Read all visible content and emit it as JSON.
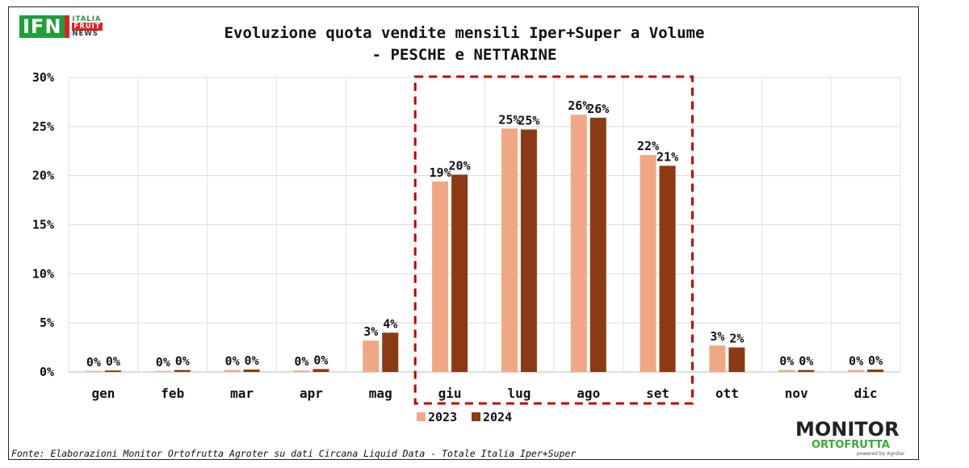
{
  "header": {
    "logo_ifn": {
      "mark": "IFN",
      "line1": "ITALIA",
      "line2": "FRUIT",
      "line3": "NEWS"
    }
  },
  "chart_data": {
    "type": "bar",
    "title": "Evoluzione quota vendite mensili Iper+Super a Volume",
    "subtitle": "- PESCHE e NETTARINE",
    "categories": [
      "gen",
      "feb",
      "mar",
      "apr",
      "mag",
      "giu",
      "lug",
      "ago",
      "set",
      "ott",
      "nov",
      "dic"
    ],
    "series": [
      {
        "name": "2023",
        "color": "#f0a884",
        "values": [
          0.1,
          0.1,
          0.2,
          0.15,
          3.2,
          19.4,
          24.8,
          26.2,
          22.1,
          2.7,
          0.2,
          0.2
        ],
        "labels": [
          "0%",
          "0%",
          "0%",
          "0%",
          "3%",
          "19%",
          "25%",
          "26%",
          "22%",
          "3%",
          "0%",
          "0%"
        ]
      },
      {
        "name": "2024",
        "color": "#8b3a14",
        "values": [
          0.15,
          0.2,
          0.25,
          0.3,
          4.0,
          20.1,
          24.7,
          25.9,
          21.0,
          2.5,
          0.2,
          0.25
        ],
        "labels": [
          "0%",
          "0%",
          "0%",
          "0%",
          "4%",
          "20%",
          "25%",
          "26%",
          "21%",
          "2%",
          "0%",
          "0%"
        ]
      }
    ],
    "ylim": [
      0,
      30
    ],
    "yticks": [
      "0%",
      "5%",
      "10%",
      "15%",
      "20%",
      "25%",
      "30%"
    ],
    "grid": true,
    "legend_position": "bottom-center",
    "highlight": {
      "from": "giu",
      "to": "set",
      "style": "red dashed box",
      "color": "#c00000"
    }
  },
  "footer": {
    "source": "Fonte: Elaborazioni Monitor Ortofrutta Agroter su dati Circana Liquid Data - Totale Italia Iper+Super",
    "logo_monitor": {
      "line1": "MONITOR",
      "line2": "ORTOFRUTTA",
      "line3": "powered by Agroter"
    }
  }
}
